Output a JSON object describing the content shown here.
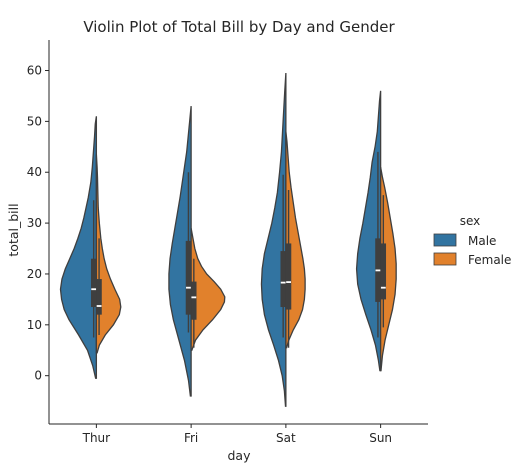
{
  "chart_data": {
    "type": "violin",
    "title": "Violin Plot of Total Bill by Day and Gender",
    "xlabel": "day",
    "ylabel": "total_bill",
    "ylim": [
      -9.5,
      66
    ],
    "yticks": [
      0,
      10,
      20,
      30,
      40,
      50,
      60
    ],
    "categories": [
      "Thur",
      "Fri",
      "Sat",
      "Sun"
    ],
    "legend": {
      "title": "sex",
      "placement": "center-right"
    },
    "series": [
      {
        "name": "Male",
        "color": "#3274a1",
        "side": "left",
        "groups": [
          {
            "min": -0.5,
            "max": 51,
            "q1": 13.5,
            "median": 17.0,
            "q3": 23,
            "whisker_low": 7.5,
            "whisker_high": 34.5,
            "profile": [
              [
                -0.5,
                0.02
              ],
              [
                2,
                0.1
              ],
              [
                5,
                0.24
              ],
              [
                8,
                0.48
              ],
              [
                11,
                0.74
              ],
              [
                13,
                0.87
              ],
              [
                15,
                0.94
              ],
              [
                17,
                0.97
              ],
              [
                19,
                0.93
              ],
              [
                21,
                0.84
              ],
              [
                23,
                0.72
              ],
              [
                25,
                0.6
              ],
              [
                27,
                0.5
              ],
              [
                29,
                0.41
              ],
              [
                31,
                0.34
              ],
              [
                33,
                0.28
              ],
              [
                35,
                0.22
              ],
              [
                38,
                0.15
              ],
              [
                41,
                0.11
              ],
              [
                44,
                0.08
              ],
              [
                47,
                0.05
              ],
              [
                49.5,
                0.03
              ],
              [
                51,
                0
              ]
            ]
          },
          {
            "min": -4,
            "max": 53,
            "q1": 12,
            "median": 17.3,
            "q3": 26.5,
            "whisker_low": 8.5,
            "whisker_high": 40.0,
            "profile": [
              [
                -4,
                0.02
              ],
              [
                -1,
                0.07
              ],
              [
                3,
                0.18
              ],
              [
                7,
                0.33
              ],
              [
                11,
                0.48
              ],
              [
                14,
                0.56
              ],
              [
                17,
                0.6
              ],
              [
                20,
                0.6
              ],
              [
                23,
                0.57
              ],
              [
                26,
                0.51
              ],
              [
                29,
                0.44
              ],
              [
                32,
                0.37
              ],
              [
                35,
                0.3
              ],
              [
                38,
                0.24
              ],
              [
                41,
                0.18
              ],
              [
                44,
                0.12
              ],
              [
                47,
                0.08
              ],
              [
                50,
                0.04
              ],
              [
                53,
                0
              ]
            ]
          },
          {
            "min": -6,
            "max": 59.5,
            "q1": 13.5,
            "median": 18.3,
            "q3": 24.5,
            "whisker_low": 7.5,
            "whisker_high": 39.5,
            "profile": [
              [
                -6,
                0.01
              ],
              [
                -3,
                0.04
              ],
              [
                0,
                0.1
              ],
              [
                3,
                0.2
              ],
              [
                6,
                0.33
              ],
              [
                9,
                0.47
              ],
              [
                12,
                0.58
              ],
              [
                15,
                0.64
              ],
              [
                18,
                0.66
              ],
              [
                21,
                0.64
              ],
              [
                24,
                0.58
              ],
              [
                27,
                0.48
              ],
              [
                30,
                0.38
              ],
              [
                33,
                0.3
              ],
              [
                36,
                0.23
              ],
              [
                40,
                0.17
              ],
              [
                44,
                0.12
              ],
              [
                48,
                0.09
              ],
              [
                52,
                0.06
              ],
              [
                56,
                0.03
              ],
              [
                59.5,
                0
              ]
            ]
          },
          {
            "min": 1,
            "max": 56,
            "q1": 14.5,
            "median": 20.7,
            "q3": 27,
            "whisker_low": 7.5,
            "whisker_high": 44.0,
            "profile": [
              [
                1,
                0.02
              ],
              [
                3,
                0.06
              ],
              [
                6,
                0.14
              ],
              [
                9,
                0.26
              ],
              [
                12,
                0.4
              ],
              [
                15,
                0.53
              ],
              [
                18,
                0.62
              ],
              [
                21,
                0.65
              ],
              [
                24,
                0.62
              ],
              [
                27,
                0.56
              ],
              [
                30,
                0.48
              ],
              [
                33,
                0.41
              ],
              [
                36,
                0.34
              ],
              [
                39,
                0.28
              ],
              [
                42,
                0.23
              ],
              [
                45,
                0.15
              ],
              [
                48,
                0.09
              ],
              [
                51,
                0.06
              ],
              [
                54,
                0.03
              ],
              [
                56,
                0
              ]
            ]
          }
        ]
      },
      {
        "name": "Female",
        "color": "#e1812c",
        "side": "right",
        "groups": [
          {
            "min": 4.5,
            "max": 43.5,
            "q1": 12,
            "median": 13.7,
            "q3": 19,
            "whisker_low": 8.0,
            "whisker_high": 27.0,
            "profile": [
              [
                4.5,
                0.02
              ],
              [
                6,
                0.08
              ],
              [
                8,
                0.24
              ],
              [
                10,
                0.46
              ],
              [
                12,
                0.62
              ],
              [
                13.5,
                0.66
              ],
              [
                15,
                0.63
              ],
              [
                17,
                0.5
              ],
              [
                19,
                0.38
              ],
              [
                21,
                0.28
              ],
              [
                23,
                0.21
              ],
              [
                25,
                0.16
              ],
              [
                27,
                0.12
              ],
              [
                30,
                0.08
              ],
              [
                33,
                0.05
              ],
              [
                36,
                0.04
              ],
              [
                39,
                0.03
              ],
              [
                41,
                0.02
              ],
              [
                43.5,
                0
              ]
            ]
          },
          {
            "min": 5,
            "max": 29,
            "q1": 11,
            "median": 15.4,
            "q3": 18.5,
            "whisker_low": 5.5,
            "whisker_high": 23.0,
            "profile": [
              [
                5,
                0.02
              ],
              [
                7,
                0.12
              ],
              [
                9,
                0.32
              ],
              [
                11,
                0.58
              ],
              [
                13,
                0.8
              ],
              [
                14.5,
                0.9
              ],
              [
                15.5,
                0.91
              ],
              [
                17,
                0.8
              ],
              [
                18.5,
                0.62
              ],
              [
                20,
                0.42
              ],
              [
                21.5,
                0.28
              ],
              [
                23,
                0.18
              ],
              [
                25,
                0.1
              ],
              [
                27,
                0.05
              ],
              [
                29,
                0
              ]
            ]
          },
          {
            "min": 5.5,
            "max": 48,
            "q1": 13,
            "median": 18.4,
            "q3": 26,
            "whisker_low": 5.5,
            "whisker_high": 36.5,
            "profile": [
              [
                5.5,
                0.02
              ],
              [
                7,
                0.08
              ],
              [
                9,
                0.2
              ],
              [
                11,
                0.35
              ],
              [
                13,
                0.45
              ],
              [
                15,
                0.5
              ],
              [
                17,
                0.52
              ],
              [
                19,
                0.52
              ],
              [
                21,
                0.5
              ],
              [
                23,
                0.46
              ],
              [
                25,
                0.41
              ],
              [
                27,
                0.36
              ],
              [
                29,
                0.31
              ],
              [
                31,
                0.26
              ],
              [
                33,
                0.22
              ],
              [
                35,
                0.18
              ],
              [
                37,
                0.14
              ],
              [
                40,
                0.09
              ],
              [
                43,
                0.06
              ],
              [
                46,
                0.03
              ],
              [
                48,
                0
              ]
            ]
          },
          {
            "min": 1,
            "max": 41,
            "q1": 15,
            "median": 17.3,
            "q3": 26,
            "whisker_low": 9.5,
            "whisker_high": 35.5,
            "profile": [
              [
                1,
                0.01
              ],
              [
                4,
                0.05
              ],
              [
                7,
                0.12
              ],
              [
                10,
                0.22
              ],
              [
                13,
                0.32
              ],
              [
                16,
                0.39
              ],
              [
                19,
                0.42
              ],
              [
                22,
                0.42
              ],
              [
                25,
                0.39
              ],
              [
                28,
                0.33
              ],
              [
                31,
                0.26
              ],
              [
                34,
                0.19
              ],
              [
                37,
                0.11
              ],
              [
                39,
                0.05
              ],
              [
                41,
                0
              ]
            ]
          }
        ]
      }
    ]
  }
}
